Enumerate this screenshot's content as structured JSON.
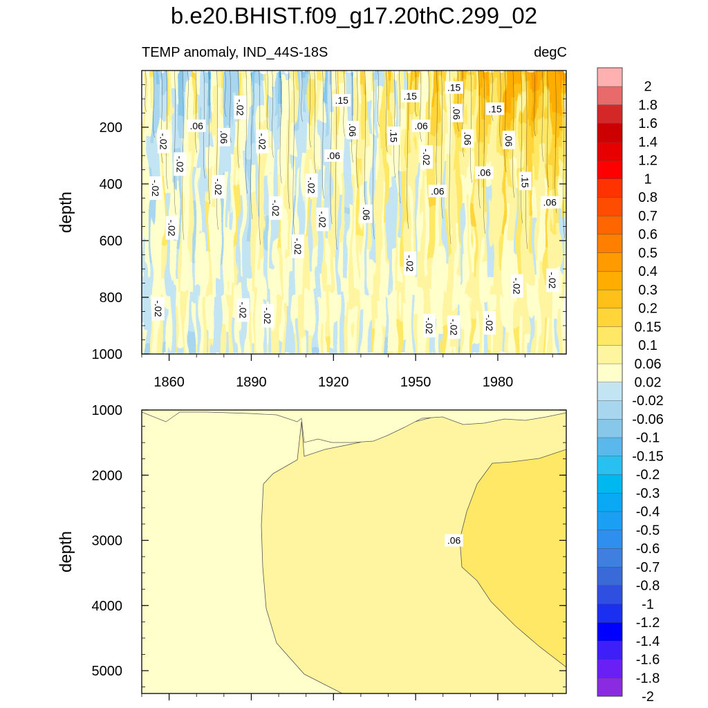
{
  "title": "b.e20.BHIST.f09_g17.20thC.299_02",
  "subtitle_left": "TEMP anomaly, IND_44S-18S",
  "subtitle_right": "degC",
  "colors": {
    "levels": [
      -2,
      -1.8,
      -1.6,
      -1.4,
      -1.2,
      -1,
      -0.8,
      -0.7,
      -0.6,
      -0.5,
      -0.4,
      -0.3,
      -0.2,
      -0.15,
      -0.1,
      -0.06,
      -0.02,
      0.02,
      0.06,
      0.1,
      0.15,
      0.2,
      0.3,
      0.4,
      0.5,
      0.6,
      0.7,
      0.8,
      1,
      1.2,
      1.4,
      1.6,
      1.8,
      2
    ],
    "fills": [
      "#8a2be2",
      "#6a1ff5",
      "#3f1ff8",
      "#0000ff",
      "#1a2ff0",
      "#2f4fe0",
      "#3a6ad8",
      "#3f7fe0",
      "#2f8fef",
      "#1a9ff5",
      "#0aa8f5",
      "#00b8f0",
      "#28c0f0",
      "#5ab8ec",
      "#87c8ea",
      "#a8d6ee",
      "#c3e4f2",
      "#ffffcc",
      "#fff5a0",
      "#ffe866",
      "#ffd53a",
      "#ffc019",
      "#ffad00",
      "#ff9a00",
      "#ff7f00",
      "#ff6600",
      "#ff4d00",
      "#ff3300",
      "#ff0000",
      "#e60000",
      "#cc0000",
      "#d42828",
      "#e86a6a",
      "#ffb0b0"
    ],
    "label_values": [
      "2",
      "1.8",
      "1.6",
      "1.4",
      "1.2",
      "1",
      "0.8",
      "0.7",
      "0.6",
      "0.5",
      "0.4",
      "0.3",
      "0.2",
      "0.15",
      "0.1",
      "0.06",
      "0.02",
      "-0.02",
      "-0.06",
      "-0.1",
      "-0.15",
      "-0.2",
      "-0.3",
      "-0.4",
      "-0.5",
      "-0.6",
      "-0.7",
      "-0.8",
      "-1",
      "-1.2",
      "-1.4",
      "-1.6",
      "-1.8",
      "-2"
    ]
  },
  "chart_data": [
    {
      "type": "heatmap",
      "panel": "upper",
      "ylabel": "depth",
      "xlabel": "",
      "x_range": [
        1850,
        2005
      ],
      "y_range": [
        0,
        1000
      ],
      "y_reversed": true,
      "xticks": [
        1860,
        1890,
        1920,
        1950,
        1980
      ],
      "yticks": [
        200,
        400,
        600,
        800,
        1000
      ],
      "contour_labels": [
        {
          "text": "-.02",
          "x": 1858,
          "y": 250
        },
        {
          "text": "-.02",
          "x": 1864,
          "y": 330
        },
        {
          "text": "-.02",
          "x": 1855,
          "y": 415
        },
        {
          "text": "-.02",
          "x": 1861,
          "y": 555
        },
        {
          "text": "-.02",
          "x": 1856,
          "y": 840
        },
        {
          "text": "-.02",
          "x": 1886,
          "y": 130
        },
        {
          "text": ".06",
          "x": 1870,
          "y": 195
        },
        {
          "text": ".06",
          "x": 1880,
          "y": 235
        },
        {
          "text": "-.02",
          "x": 1878,
          "y": 410
        },
        {
          "text": "-.02",
          "x": 1894,
          "y": 250
        },
        {
          "text": "-.02",
          "x": 1899,
          "y": 485
        },
        {
          "text": "-.02",
          "x": 1907,
          "y": 620
        },
        {
          "text": "-.02",
          "x": 1912,
          "y": 405
        },
        {
          "text": "-.02",
          "x": 1916,
          "y": 525
        },
        {
          "text": "-.02",
          "x": 1887,
          "y": 845
        },
        {
          "text": "-.02",
          "x": 1896,
          "y": 865
        },
        {
          "text": ".15",
          "x": 1923,
          "y": 105
        },
        {
          "text": ".06",
          "x": 1927,
          "y": 210
        },
        {
          "text": ".06",
          "x": 1920,
          "y": 300
        },
        {
          "text": ".06",
          "x": 1932,
          "y": 505
        },
        {
          "text": ".15",
          "x": 1948,
          "y": 90
        },
        {
          "text": ".15",
          "x": 1942,
          "y": 230
        },
        {
          "text": ".06",
          "x": 1952,
          "y": 195
        },
        {
          "text": "-.02",
          "x": 1954,
          "y": 305
        },
        {
          "text": ".15",
          "x": 1964,
          "y": 60
        },
        {
          "text": ".06",
          "x": 1965,
          "y": 150
        },
        {
          "text": ".06",
          "x": 1958,
          "y": 425
        },
        {
          "text": ".06",
          "x": 1969,
          "y": 240
        },
        {
          "text": ".15",
          "x": 1979,
          "y": 135
        },
        {
          "text": ".06",
          "x": 1984,
          "y": 245
        },
        {
          "text": ".06",
          "x": 1975,
          "y": 360
        },
        {
          "text": ".15",
          "x": 1990,
          "y": 390
        },
        {
          "text": ".06",
          "x": 1999,
          "y": 465
        },
        {
          "text": "-.02",
          "x": 1948,
          "y": 680
        },
        {
          "text": "-.02",
          "x": 1955,
          "y": 900
        },
        {
          "text": "-.02",
          "x": 1964,
          "y": 905
        },
        {
          "text": "-.02",
          "x": 1977,
          "y": 890
        },
        {
          "text": "-.02",
          "x": 1987,
          "y": 760
        },
        {
          "text": "-.02",
          "x": 2000,
          "y": 740
        }
      ]
    },
    {
      "type": "heatmap",
      "panel": "lower",
      "ylabel": "depth",
      "x_range": [
        1850,
        2005
      ],
      "y_range": [
        1000,
        5350
      ],
      "y_reversed": true,
      "yticks": [
        1000,
        2000,
        3000,
        4000,
        5000
      ],
      "contour_labels": [
        {
          "text": ".06",
          "x": 1964,
          "y": 3000
        }
      ]
    }
  ]
}
